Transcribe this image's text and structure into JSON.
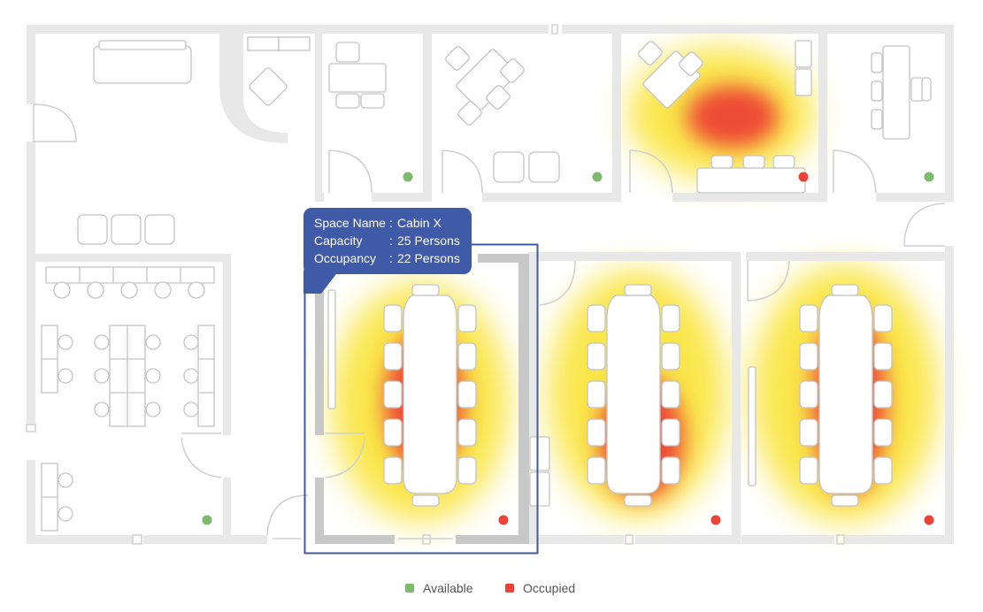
{
  "tooltip": {
    "space_name_key": "Space Name",
    "space_name_value": "Cabin X",
    "capacity_key": "Capacity",
    "capacity_value": "25 Persons",
    "occupancy_key": "Occupancy",
    "occupancy_value": "22 Persons",
    "separator": ":"
  },
  "legend": {
    "available_label": "Available",
    "occupied_label": "Occupied"
  },
  "colors": {
    "available": "#7dbb6c",
    "occupied": "#ef4136",
    "tooltip_bg": "#3f5aa6",
    "wall": "#e8e8e8",
    "selection": "#3f5aa6"
  },
  "rooms": [
    {
      "id": "top-cabin-1",
      "status": "available"
    },
    {
      "id": "top-cabin-2",
      "status": "available"
    },
    {
      "id": "top-cabin-3",
      "status": "occupied"
    },
    {
      "id": "top-cabin-4",
      "status": "available"
    },
    {
      "id": "open-workspace",
      "status": "available"
    },
    {
      "id": "cabin-x",
      "status": "occupied"
    },
    {
      "id": "conference-2",
      "status": "occupied"
    },
    {
      "id": "conference-3",
      "status": "occupied"
    }
  ]
}
